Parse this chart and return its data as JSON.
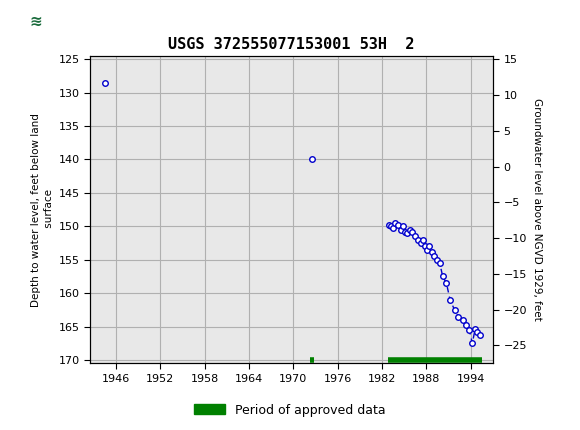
{
  "title": "USGS 372555077153001 53H  2",
  "ylabel_left": "Depth to water level, feet below land\n surface",
  "ylabel_right": "Groundwater level above NGVD 1929, feet",
  "header_color": "#1a6b3c",
  "bg_color": "#ffffff",
  "plot_bg_color": "#e8e8e8",
  "ylim_left": [
    170.5,
    124.5
  ],
  "ylim_right": [
    -27.5,
    15.5
  ],
  "xlim": [
    1942.5,
    1997.0
  ],
  "xticks": [
    1946,
    1952,
    1958,
    1964,
    1970,
    1976,
    1982,
    1988,
    1994
  ],
  "yticks_left": [
    125,
    130,
    135,
    140,
    145,
    150,
    155,
    160,
    165,
    170
  ],
  "yticks_right": [
    15,
    10,
    5,
    0,
    -5,
    -10,
    -15,
    -20,
    -25
  ],
  "data_x": [
    1944.5,
    1972.5,
    1983.0,
    1983.2,
    1983.5,
    1983.8,
    1984.2,
    1984.5,
    1984.8,
    1985.1,
    1985.4,
    1985.8,
    1986.1,
    1986.5,
    1986.9,
    1987.2,
    1987.5,
    1987.8,
    1988.1,
    1988.4,
    1988.7,
    1989.0,
    1989.4,
    1989.8,
    1990.2,
    1990.7,
    1991.2,
    1991.8,
    1992.3,
    1993.0,
    1993.4,
    1993.8,
    1994.2,
    1994.6,
    1994.9,
    1995.3
  ],
  "data_y": [
    128.5,
    140.0,
    149.8,
    150.0,
    150.2,
    149.5,
    149.8,
    150.5,
    150.0,
    150.8,
    151.0,
    150.5,
    150.8,
    151.5,
    152.0,
    152.5,
    152.0,
    153.0,
    153.5,
    153.0,
    153.8,
    154.5,
    155.0,
    155.5,
    157.5,
    158.5,
    161.0,
    162.5,
    163.5,
    164.0,
    164.8,
    165.5,
    167.5,
    165.3,
    165.8,
    166.2
  ],
  "approved_segments": [
    {
      "x_start": 1972.3,
      "x_end": 1972.8
    },
    {
      "x_start": 1982.8,
      "x_end": 1995.5
    }
  ],
  "approved_color": "#008000",
  "approved_y": 170.0,
  "line_color": "#0000cc",
  "marker_color": "#0000cc",
  "grid_color": "#b0b0b0",
  "legend_label": "Period of approved data"
}
